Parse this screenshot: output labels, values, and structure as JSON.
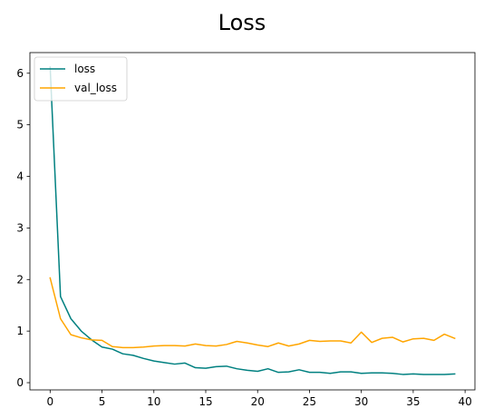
{
  "chart_data": {
    "type": "line",
    "title": "Loss",
    "xlabel": "",
    "ylabel": "",
    "xlim": [
      -1.95,
      40.95
    ],
    "ylim": [
      -0.14,
      6.4
    ],
    "x_ticks": [
      0,
      5,
      10,
      15,
      20,
      25,
      30,
      35,
      40
    ],
    "y_ticks": [
      0,
      1,
      2,
      3,
      4,
      5,
      6
    ],
    "grid": false,
    "legend": "top-left",
    "x": [
      0,
      1,
      2,
      3,
      4,
      5,
      6,
      7,
      8,
      9,
      10,
      11,
      12,
      13,
      14,
      15,
      16,
      17,
      18,
      19,
      20,
      21,
      22,
      23,
      24,
      25,
      26,
      27,
      28,
      29,
      30,
      31,
      32,
      33,
      34,
      35,
      36,
      37,
      38,
      39
    ],
    "series": [
      {
        "name": "loss",
        "color": "#008080",
        "values": [
          6.12,
          1.67,
          1.24,
          1.0,
          0.83,
          0.69,
          0.65,
          0.56,
          0.53,
          0.47,
          0.42,
          0.39,
          0.36,
          0.38,
          0.29,
          0.28,
          0.31,
          0.32,
          0.27,
          0.24,
          0.22,
          0.27,
          0.2,
          0.21,
          0.25,
          0.2,
          0.2,
          0.18,
          0.21,
          0.21,
          0.18,
          0.19,
          0.19,
          0.18,
          0.16,
          0.17,
          0.16,
          0.16,
          0.16,
          0.17
        ]
      },
      {
        "name": "val_loss",
        "color": "#ffa500",
        "values": [
          2.03,
          1.24,
          0.93,
          0.87,
          0.83,
          0.82,
          0.7,
          0.68,
          0.68,
          0.69,
          0.71,
          0.72,
          0.72,
          0.71,
          0.75,
          0.72,
          0.71,
          0.74,
          0.8,
          0.77,
          0.73,
          0.7,
          0.77,
          0.71,
          0.75,
          0.82,
          0.8,
          0.81,
          0.81,
          0.77,
          0.98,
          0.78,
          0.86,
          0.88,
          0.79,
          0.85,
          0.86,
          0.82,
          0.94,
          0.86
        ]
      }
    ]
  }
}
